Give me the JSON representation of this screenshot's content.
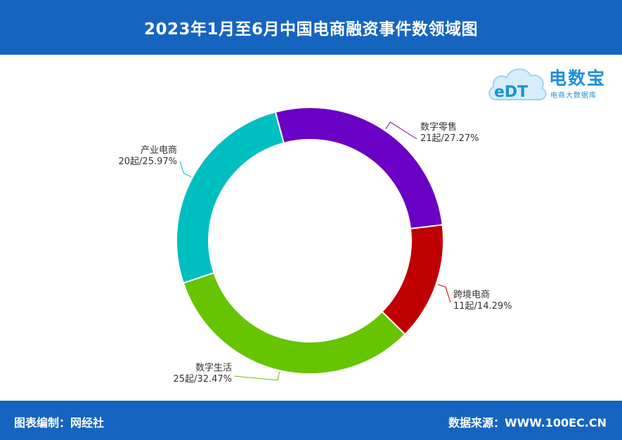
{
  "header": {
    "title": "2023年1月至6月中国电商融资事件数领域图"
  },
  "logo": {
    "mark": "eDT",
    "name": "电数宝",
    "subtitle": "电商大数据库"
  },
  "footer": {
    "left_text": "图表编制：网经社",
    "right_text": "数据来源：WWW.100EC.CN"
  },
  "chart_data": {
    "type": "pie",
    "style": "donut",
    "title": "2023年1月至6月中国电商融资事件数领域图",
    "slices": [
      {
        "name": "数字零售",
        "value": 21,
        "percent": 27.27,
        "label": "21起/27.27%",
        "color": "#6a00c4"
      },
      {
        "name": "跨境电商",
        "value": 11,
        "percent": 14.29,
        "label": "11起/14.29%",
        "color": "#c00000"
      },
      {
        "name": "数字生活",
        "value": 25,
        "percent": 32.47,
        "label": "25起/32.47%",
        "color": "#66c400"
      },
      {
        "name": "产业电商",
        "value": 20,
        "percent": 25.97,
        "label": "20起/25.97%",
        "color": "#00bfc0"
      }
    ],
    "start_angle_deg": -15,
    "legend": "none"
  }
}
